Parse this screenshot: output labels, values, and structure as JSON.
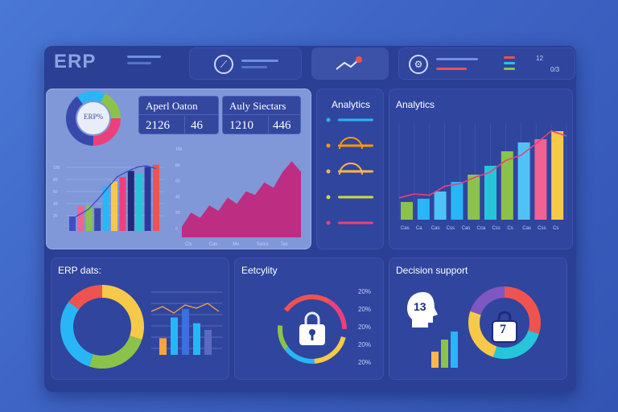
{
  "header": {
    "logo": "ERP",
    "right_values": [
      "12",
      "0/3"
    ]
  },
  "overview": {
    "donut_label": "ERP%",
    "stats": [
      {
        "label": "Aperl Oaton",
        "values": [
          "2126",
          "46"
        ]
      },
      {
        "label": "Auly Siectars",
        "values": [
          "1210",
          "446"
        ]
      }
    ],
    "left_chart": {
      "y_ticks": [
        "100",
        "80",
        "60",
        "40",
        "20"
      ],
      "bars": [
        {
          "value": 14,
          "color": "#3d4fc4"
        },
        {
          "value": 24,
          "color": "#f06292"
        },
        {
          "value": 25,
          "color": "#8bc34a"
        },
        {
          "value": 22,
          "color": "#3949ab"
        },
        {
          "value": 43,
          "color": "#29b6f6"
        },
        {
          "value": 48,
          "color": "#f7c948"
        },
        {
          "value": 52,
          "color": "#ec407a"
        },
        {
          "value": 58,
          "color": "#1e2a7a"
        },
        {
          "value": 56,
          "color": "#26c6da"
        },
        {
          "value": 62,
          "color": "#2a3a9c"
        },
        {
          "value": 64,
          "color": "#ef5350"
        }
      ],
      "line": [
        15,
        22,
        30,
        44,
        60,
        75,
        82,
        88,
        90,
        86
      ]
    },
    "area_chart": {
      "y_ticks": [
        "100",
        "80",
        "60",
        "40",
        "20",
        "0"
      ],
      "x_ticks": [
        "Cls",
        "Cas",
        "Mv",
        "Setcs",
        "Tas"
      ],
      "values": [
        12,
        28,
        22,
        36,
        30,
        45,
        38,
        52,
        48,
        62,
        56,
        74,
        86,
        74
      ]
    }
  },
  "analytics_list": {
    "title": "Analytics",
    "rows": [
      {
        "color": "#29b6f6"
      },
      {
        "color": "#ff9800"
      },
      {
        "color": "#ffb74d"
      },
      {
        "color": "#cddc39"
      },
      {
        "color": "#ec407a"
      }
    ]
  },
  "analytics_chart": {
    "title": "Analytics",
    "x_ticks": [
      "Cas",
      "Ca",
      "Cas",
      "Css",
      "Cas",
      "Cca",
      "Css",
      "Cs",
      "Cas",
      "Css",
      "Cs"
    ],
    "bars": [
      {
        "value": 22,
        "color": "#8bc34a"
      },
      {
        "value": 26,
        "color": "#29b6f6"
      },
      {
        "value": 35,
        "color": "#4fc3f7"
      },
      {
        "value": 47,
        "color": "#29b6f6"
      },
      {
        "value": 56,
        "color": "#8bc34a"
      },
      {
        "value": 67,
        "color": "#26c6da"
      },
      {
        "value": 85,
        "color": "#8bc34a"
      },
      {
        "value": 96,
        "color": "#4fc3f7"
      },
      {
        "value": 100,
        "color": "#f06292"
      },
      {
        "value": 110,
        "color": "#f7c948"
      }
    ],
    "line": [
      34,
      40,
      38,
      52,
      56,
      66,
      74,
      92,
      100,
      118,
      138,
      130
    ]
  },
  "erp_data": {
    "title": "ERP dats:",
    "donut": [
      {
        "value": 30,
        "color": "#f7c948"
      },
      {
        "value": 25,
        "color": "#8bc34a"
      },
      {
        "value": 30,
        "color": "#29b6f6"
      },
      {
        "value": 15,
        "color": "#ef5350"
      }
    ],
    "bars": [
      {
        "value": 20,
        "color": "#f7a440"
      },
      {
        "value": 45,
        "color": "#29b6f6"
      },
      {
        "value": 55,
        "color": "#3d6fe0"
      },
      {
        "value": 38,
        "color": "#29b6f6"
      },
      {
        "value": 30,
        "color": "#5c6bc0"
      }
    ],
    "line": [
      62,
      68,
      60,
      70,
      66,
      72,
      62
    ]
  },
  "security": {
    "title": "Eetcylity",
    "percents": [
      "20%",
      "20%",
      "20%",
      "20%",
      "20%"
    ]
  },
  "decision": {
    "title": "Decision support",
    "head_value": "13",
    "bag_value": "7",
    "bars": [
      {
        "value": 20,
        "color": "#ffb74d"
      },
      {
        "value": 35,
        "color": "#8bc34a"
      },
      {
        "value": 45,
        "color": "#29b6f6"
      }
    ],
    "donut": [
      {
        "value": 30,
        "color": "#ef5350"
      },
      {
        "value": 25,
        "color": "#26c6da"
      },
      {
        "value": 25,
        "color": "#f7c948"
      },
      {
        "value": 20,
        "color": "#7e57c2"
      }
    ]
  }
}
